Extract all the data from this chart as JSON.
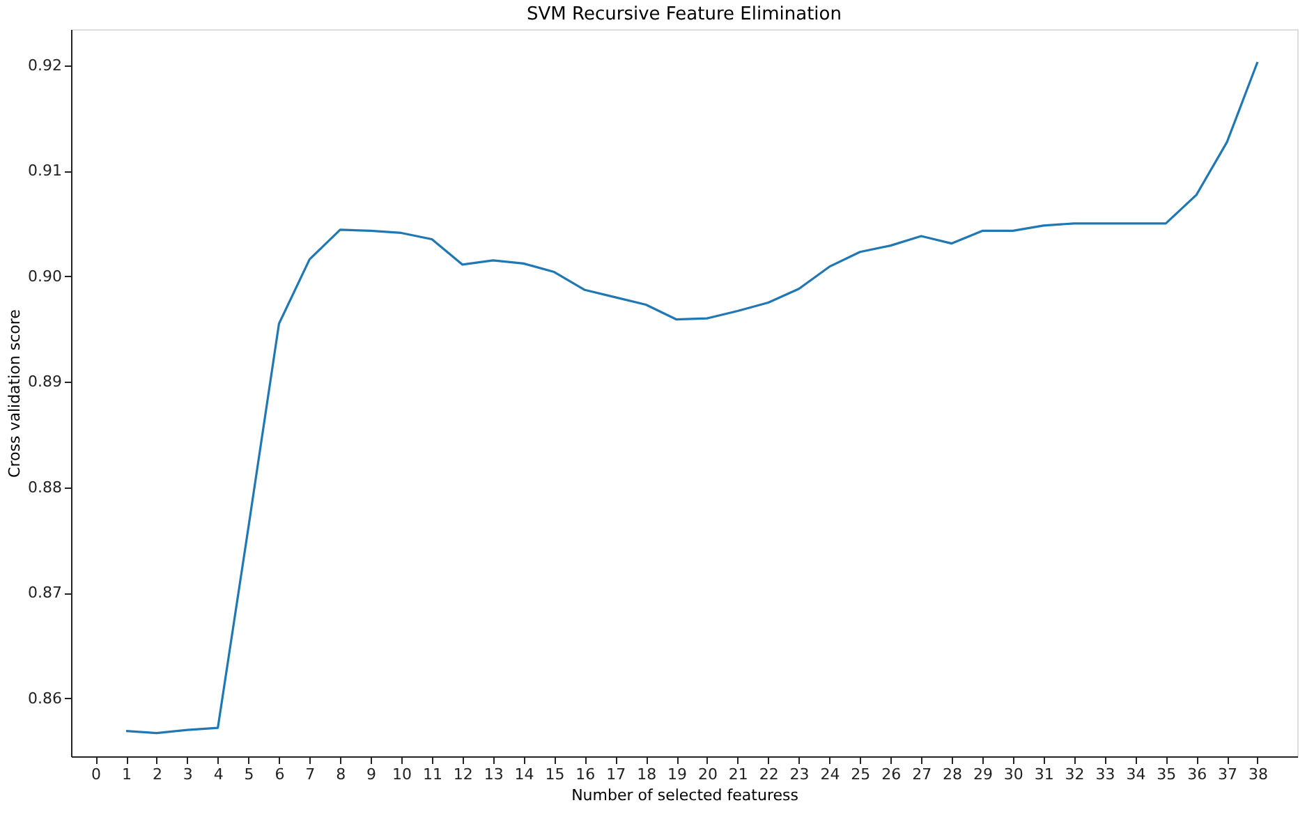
{
  "chart_data": {
    "type": "line",
    "title": "SVM Recursive Feature Elimination",
    "xlabel": "Number of selected featuress",
    "ylabel": "Cross validation score",
    "x": [
      1,
      2,
      3,
      4,
      5,
      6,
      7,
      8,
      9,
      10,
      11,
      12,
      13,
      14,
      15,
      16,
      17,
      18,
      19,
      20,
      21,
      22,
      23,
      24,
      25,
      26,
      27,
      28,
      29,
      30,
      31,
      32,
      33,
      34,
      35,
      36,
      37,
      38
    ],
    "series": [
      {
        "color": "#1f77b4",
        "values": [
          0.8569,
          0.8567,
          0.857,
          0.8572,
          0.8762,
          0.8955,
          0.9016,
          0.9044,
          0.9043,
          0.9041,
          0.9035,
          0.9011,
          0.9015,
          0.9012,
          0.9004,
          0.8987,
          0.898,
          0.8973,
          0.8959,
          0.896,
          0.8967,
          0.8975,
          0.8988,
          0.9009,
          0.9023,
          0.9029,
          0.9038,
          0.9031,
          0.9043,
          0.9043,
          0.9048,
          0.905,
          0.905,
          0.905,
          0.905,
          0.9077,
          0.9127,
          0.9203
        ]
      }
    ],
    "xlim": [
      -0.8,
      39.3
    ],
    "xticks": [
      0,
      1,
      2,
      3,
      4,
      5,
      6,
      7,
      8,
      9,
      10,
      11,
      12,
      13,
      14,
      15,
      16,
      17,
      18,
      19,
      20,
      21,
      22,
      23,
      24,
      25,
      26,
      27,
      28,
      29,
      30,
      31,
      32,
      33,
      34,
      35,
      36,
      37,
      38
    ],
    "ylim": [
      0.8545,
      0.9234
    ],
    "yticks": [
      0.86,
      0.87,
      0.88,
      0.89,
      {
        "value": 0.9,
        "label": "0.90"
      },
      0.91,
      0.92
    ],
    "grid": false,
    "legend": false,
    "line_style": "solid",
    "marker": "none"
  }
}
